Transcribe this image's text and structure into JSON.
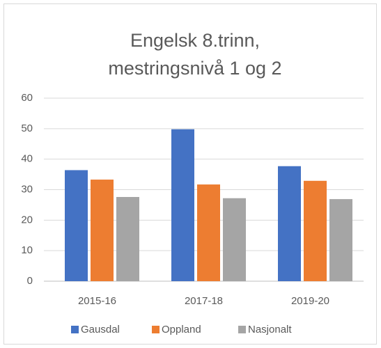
{
  "chart_data": {
    "type": "bar",
    "title": [
      "Engelsk 8.trinn,",
      "mestringsnivå 1 og 2"
    ],
    "categories": [
      "2015-16",
      "2017-18",
      "2019-20"
    ],
    "series": [
      {
        "name": "Gausdal",
        "color": "#4472c4",
        "values": [
          36.4,
          49.8,
          37.7
        ]
      },
      {
        "name": "Oppland",
        "color": "#ed7d31",
        "values": [
          33.3,
          31.7,
          32.9
        ]
      },
      {
        "name": "Nasjonalt",
        "color": "#a5a5a5",
        "values": [
          27.6,
          27.2,
          26.9
        ]
      }
    ],
    "ylim": [
      0,
      60
    ],
    "yticks": [
      0,
      10,
      20,
      30,
      40,
      50,
      60
    ],
    "grid": true,
    "legend": "bottom"
  }
}
